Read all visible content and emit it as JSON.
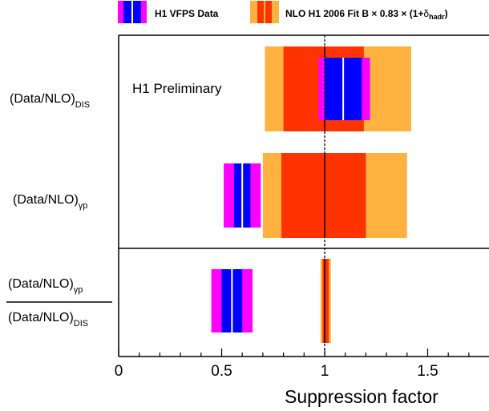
{
  "legend": {
    "data_label": "H1 VFPS Data",
    "nlo_label_main": "NLO H1 2006 Fit B × 0.83 × (1+",
    "nlo_label_delta": "δ",
    "nlo_label_sub": "hadr",
    "nlo_label_close": ")"
  },
  "annotation": {
    "preliminary": "H1 Preliminary"
  },
  "rows": {
    "dis": {
      "label_main": "(Data/NLO)",
      "label_sub": "DIS"
    },
    "gp": {
      "label_main": "(Data/NLO)",
      "label_sub": "γp"
    },
    "ratio": {
      "num_main": "(Data/NLO)",
      "num_sub": "γp",
      "den_main": "(Data/NLO)",
      "den_sub": "DIS"
    }
  },
  "axis": {
    "xlabel": "Suppression factor",
    "ticks": [
      {
        "value": 0,
        "label": "0"
      },
      {
        "value": 0.5,
        "label": "0.5"
      },
      {
        "value": 1,
        "label": "1"
      },
      {
        "value": 1.5,
        "label": "1.5"
      }
    ]
  },
  "colors": {
    "data_outer": "#ff00ff",
    "data_inner": "#0000ff",
    "nlo_outer": "#ffb23f",
    "nlo_inner": "#ff3300",
    "central_line_data": "#ffffff",
    "central_line_nlo": "#000000"
  },
  "chart_data": {
    "type": "bar",
    "title": "",
    "xlabel": "Suppression factor",
    "ylabel": "",
    "xlim": [
      0,
      1.8
    ],
    "reference_line": 1.0,
    "categories": [
      "(Data/NLO)_DIS",
      "(Data/NLO)_γp",
      "(Data/NLO)_γp / (Data/NLO)_DIS"
    ],
    "series": [
      {
        "name": "H1 VFPS Data",
        "values": [
          1.09,
          0.6,
          0.55
        ],
        "inner_band": [
          [
            1.0,
            1.18
          ],
          [
            0.56,
            0.64
          ],
          [
            0.5,
            0.6
          ]
        ],
        "outer_band": [
          [
            0.97,
            1.22
          ],
          [
            0.51,
            0.69
          ],
          [
            0.45,
            0.65
          ]
        ]
      },
      {
        "name": "NLO H1 2006 Fit B × 0.83 × (1+δhadr)",
        "values": [
          1.0,
          1.0,
          1.0
        ],
        "inner_band": [
          [
            0.8,
            1.19
          ],
          [
            0.79,
            1.2
          ],
          [
            0.99,
            1.02
          ]
        ],
        "outer_band": [
          [
            0.71,
            1.42
          ],
          [
            0.7,
            1.4
          ],
          [
            0.98,
            1.03
          ]
        ]
      }
    ]
  }
}
